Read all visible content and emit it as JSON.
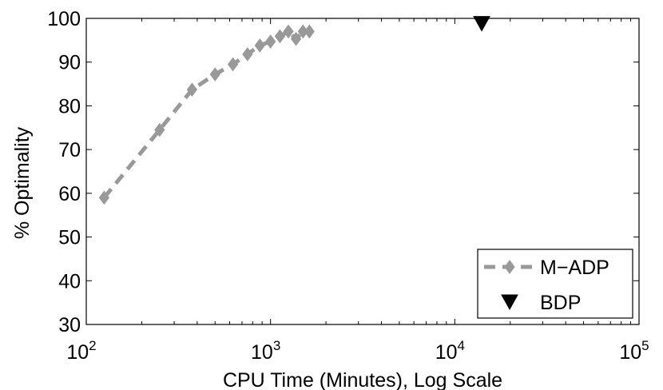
{
  "chart_data": {
    "type": "line",
    "xscale": "log",
    "xlim": [
      100,
      100000
    ],
    "ylim": [
      30,
      100
    ],
    "xticks": [
      {
        "base": "10",
        "exp": "2",
        "value": 100
      },
      {
        "base": "10",
        "exp": "3",
        "value": 1000
      },
      {
        "base": "10",
        "exp": "4",
        "value": 10000
      },
      {
        "base": "10",
        "exp": "5",
        "value": 100000
      }
    ],
    "yticks": [
      30,
      40,
      50,
      60,
      70,
      80,
      90,
      100
    ],
    "xlabel": "CPU Time (Minutes), Log Scale",
    "ylabel": "% Optimality",
    "grid": false,
    "legend_position": "bottom-right",
    "series": [
      {
        "name": "M−ADP",
        "color": "#999999",
        "line_style": "dashed",
        "marker": "diamond",
        "x": [
          125,
          250,
          375,
          500,
          625,
          750,
          875,
          1000,
          1125,
          1250,
          1375,
          1500,
          1625
        ],
        "y": [
          59,
          74.5,
          83.7,
          87.2,
          89.5,
          91.8,
          93.8,
          94.7,
          95.9,
          97.0,
          95.3,
          97.0,
          97.0
        ]
      },
      {
        "name": "BDP",
        "color": "#000000",
        "line_style": "none",
        "marker": "triangle-down",
        "x": [
          14000
        ],
        "y": [
          98.8
        ]
      }
    ]
  }
}
